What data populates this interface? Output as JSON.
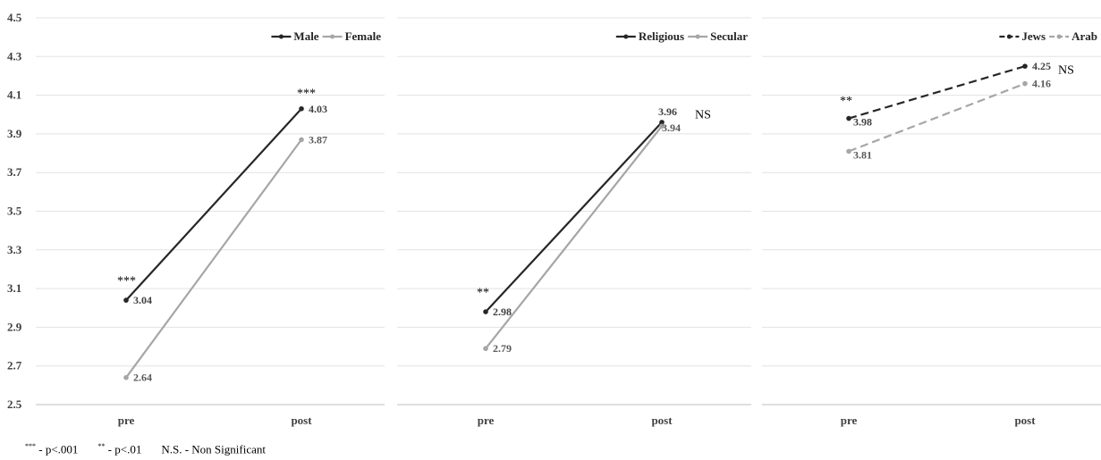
{
  "chart_data": [
    {
      "type": "line",
      "categories": [
        "pre",
        "post"
      ],
      "ylim": [
        2.5,
        4.5
      ],
      "yticks": [
        "2.5",
        "2.7",
        "2.9",
        "3.1",
        "3.3",
        "3.5",
        "3.7",
        "3.9",
        "4.1",
        "4.3",
        "4.5"
      ],
      "grid": true,
      "legend_position": "top-right",
      "series": [
        {
          "name": "Male",
          "values": [
            3.04,
            4.03
          ],
          "labels": [
            "3.04",
            "4.03"
          ],
          "color": "#262626",
          "dash": false
        },
        {
          "name": "Female",
          "values": [
            2.64,
            3.87
          ],
          "labels": [
            "2.64",
            "3.87"
          ],
          "color": "#a6a6a6",
          "dash": false
        }
      ],
      "annotations": [
        {
          "text": "***",
          "category": "pre",
          "y": 3.14
        },
        {
          "text": "***",
          "category": "post",
          "y": 4.11
        }
      ]
    },
    {
      "type": "line",
      "categories": [
        "pre",
        "post"
      ],
      "ylim": [
        2.5,
        4.5
      ],
      "grid": true,
      "legend_position": "top-right",
      "series": [
        {
          "name": "Religious",
          "values": [
            2.98,
            3.96
          ],
          "labels": [
            "2.98",
            "3.96"
          ],
          "color": "#262626",
          "dash": false
        },
        {
          "name": "Secular",
          "values": [
            2.79,
            3.94
          ],
          "labels": [
            "2.79",
            "3.94"
          ],
          "color": "#a6a6a6",
          "dash": false
        }
      ],
      "annotations": [
        {
          "text": "**",
          "category": "pre",
          "y": 3.08
        },
        {
          "text": "NS",
          "category": "post",
          "y": 4.0
        }
      ]
    },
    {
      "type": "line",
      "categories": [
        "pre",
        "post"
      ],
      "ylim": [
        2.5,
        4.5
      ],
      "grid": true,
      "legend_position": "top-right",
      "series": [
        {
          "name": "Jews",
          "values": [
            3.98,
            4.25
          ],
          "labels": [
            "3.98",
            "4.25"
          ],
          "color": "#262626",
          "dash": true
        },
        {
          "name": "Arab",
          "values": [
            3.81,
            4.16
          ],
          "labels": [
            "3.81",
            "4.16"
          ],
          "color": "#a6a6a6",
          "dash": true
        }
      ],
      "annotations": [
        {
          "text": "**",
          "category": "pre",
          "y": 4.07
        },
        {
          "text": "NS",
          "category": "post",
          "y": 4.23
        }
      ]
    }
  ],
  "footnote": {
    "sig1_stars": "***",
    "sig1_text": "- p<.001",
    "sig2_stars": "**",
    "sig2_text": "- p<.01",
    "sig3_text": "N.S. - Non Significant"
  }
}
